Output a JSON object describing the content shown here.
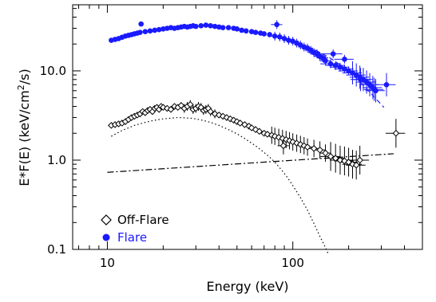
{
  "chart_data": {
    "type": "scatter",
    "title": "",
    "xlabel": "Energy (keV)",
    "ylabel_parts": [
      "E*F(E) (keV/cm",
      "2",
      "/s)"
    ],
    "xscale": "log",
    "yscale": "log",
    "xlim": [
      6.5,
      500
    ],
    "ylim": [
      0.1,
      55
    ],
    "x_ticks": [
      {
        "v": 10,
        "label": "10"
      },
      {
        "v": 100,
        "label": "100"
      }
    ],
    "y_ticks": [
      {
        "v": 0.1,
        "label": "0.1"
      },
      {
        "v": 1,
        "label": "1.0"
      },
      {
        "v": 10,
        "label": "10.0"
      }
    ],
    "legend": {
      "placement": "bottom-left"
    },
    "series": [
      {
        "name": "Flare",
        "marker": "filled-circle",
        "color": "#1a1aff",
        "x": [
          10.5,
          11.0,
          11.5,
          12.0,
          12.5,
          13.0,
          13.5,
          14.0,
          14.5,
          15.0,
          15.2,
          16.0,
          17.0,
          18.0,
          19.0,
          20.0,
          21.0,
          22.0,
          23.0,
          24.0,
          25.0,
          26.0,
          27.0,
          28.0,
          29.0,
          30.0,
          32.0,
          34.0,
          36.0,
          38.0,
          40.0,
          42.0,
          45.0,
          48.0,
          50.0,
          53.0,
          56.0,
          60.0,
          63.0,
          67.0,
          70.0,
          75.0,
          80.0,
          85.0,
          90.0,
          95.0,
          100.0,
          105.0,
          110.0,
          115.0,
          120.0,
          125.0,
          130.0,
          135.0,
          140.0,
          145.0,
          150.0,
          160.0,
          170.0,
          180.0,
          190.0,
          200.0,
          210.0,
          220.0,
          230.0,
          240.0,
          250.0,
          260.0,
          270.0,
          280.0,
          82.0,
          165.0,
          190.0,
          232.0,
          275.0,
          320.0
        ],
        "y": [
          22.0,
          22.5,
          23.0,
          23.8,
          24.5,
          25.0,
          25.5,
          26.0,
          26.5,
          27.0,
          33.5,
          27.5,
          28.0,
          28.5,
          29.0,
          29.5,
          30.0,
          30.5,
          30.0,
          30.5,
          31.0,
          31.5,
          31.0,
          31.5,
          32.0,
          31.5,
          32.0,
          32.5,
          32.0,
          31.5,
          31.0,
          30.5,
          30.5,
          30.0,
          29.5,
          28.5,
          28.0,
          27.5,
          27.0,
          26.5,
          26.0,
          25.5,
          24.5,
          24.0,
          23.0,
          22.0,
          21.5,
          20.5,
          19.5,
          18.5,
          18.0,
          17.0,
          16.0,
          15.5,
          14.5,
          14.0,
          13.0,
          12.0,
          11.5,
          11.0,
          10.5,
          10.0,
          9.5,
          9.0,
          8.5,
          8.0,
          7.5,
          7.0,
          6.5,
          6.0,
          33.0,
          15.5,
          13.5,
          8.0,
          6.2,
          7.0
        ]
      },
      {
        "name": "Off-Flare",
        "marker": "open-diamond",
        "color": "#000000",
        "x": [
          10.5,
          11.0,
          11.5,
          12.0,
          12.5,
          13.0,
          13.5,
          14.0,
          14.5,
          15.0,
          15.5,
          16.0,
          16.5,
          17.0,
          17.5,
          18.0,
          18.5,
          19.0,
          19.5,
          20.0,
          21.0,
          22.0,
          23.0,
          24.0,
          25.0,
          26.0,
          27.0,
          28.0,
          29.0,
          30.0,
          31.0,
          32.0,
          33.0,
          34.0,
          35.0,
          36.0,
          38.0,
          40.0,
          42.0,
          44.0,
          46.0,
          48.0,
          50.0,
          52.0,
          55.0,
          58.0,
          60.0,
          63.0,
          66.0,
          70.0,
          73.0,
          77.0,
          80.0,
          84.0,
          88.0,
          92.0,
          96.0,
          100.0,
          105.0,
          110.0,
          115.0,
          120.0,
          130.0,
          140.0,
          150.0,
          160.0,
          170.0,
          180.0,
          190.0,
          200.0,
          210.0,
          220.0,
          230.0,
          360.0,
          89.0
        ],
        "y": [
          2.45,
          2.5,
          2.55,
          2.6,
          2.7,
          2.85,
          3.0,
          3.1,
          3.2,
          3.3,
          3.5,
          3.4,
          3.6,
          3.7,
          3.5,
          3.8,
          3.9,
          3.7,
          4.0,
          3.9,
          3.8,
          3.7,
          4.0,
          3.9,
          4.1,
          3.8,
          4.0,
          4.2,
          3.7,
          3.8,
          4.0,
          3.9,
          3.6,
          3.7,
          3.8,
          3.5,
          3.3,
          3.2,
          3.1,
          3.0,
          2.9,
          2.8,
          2.7,
          2.6,
          2.5,
          2.4,
          2.3,
          2.2,
          2.1,
          2.0,
          1.95,
          1.9,
          1.85,
          1.8,
          1.75,
          1.7,
          1.65,
          1.6,
          1.55,
          1.5,
          1.45,
          1.4,
          1.35,
          1.3,
          1.2,
          1.1,
          1.05,
          1.0,
          0.98,
          0.95,
          0.9,
          0.88,
          1.0,
          2.0,
          1.45
        ]
      }
    ],
    "model_lines": [
      {
        "style": "dash-dot",
        "color": "#000000",
        "x": [
          10,
          350
        ],
        "y": [
          0.73,
          1.18
        ]
      },
      {
        "style": "dotted",
        "color": "#000000",
        "x": [
          10.5,
          12,
          14,
          16,
          18,
          20,
          22,
          24,
          26,
          28,
          30,
          33,
          36,
          40,
          45,
          50,
          55,
          60,
          65,
          70,
          75,
          80,
          85,
          90,
          95,
          100,
          110,
          120,
          130,
          140,
          150,
          155
        ],
        "y": [
          1.85,
          2.15,
          2.45,
          2.65,
          2.8,
          2.9,
          2.95,
          3.0,
          2.98,
          2.95,
          2.9,
          2.78,
          2.65,
          2.45,
          2.2,
          1.97,
          1.75,
          1.55,
          1.38,
          1.22,
          1.08,
          0.95,
          0.82,
          0.71,
          0.61,
          0.52,
          0.38,
          0.275,
          0.195,
          0.14,
          0.105,
          0.09
        ]
      },
      {
        "style": "dashed",
        "color": "#1a1aff",
        "x": [
          100,
          130,
          160,
          190,
          220,
          250,
          280,
          310
        ],
        "y": [
          21.0,
          17.5,
          13.8,
          10.8,
          8.3,
          6.3,
          4.9,
          3.9
        ]
      }
    ]
  }
}
